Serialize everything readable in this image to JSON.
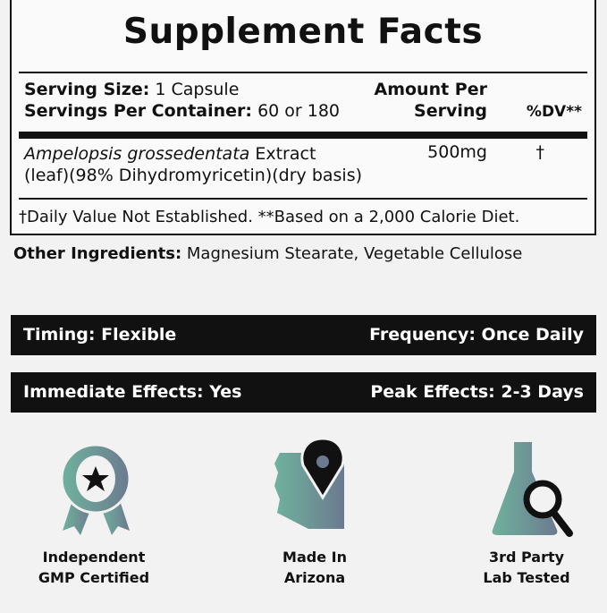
{
  "facts": {
    "title": "Supplement Facts",
    "serving_size_label": "Serving Size:",
    "serving_size_value": "1 Capsule",
    "servings_label": "Servings Per Container:",
    "servings_value": "60 or 180",
    "amount_header_1": "Amount Per",
    "amount_header_2": "Serving",
    "dv_header": "%DV**",
    "ingredient_italic": "Ampelopsis grossedentata",
    "ingredient_rest": "Extract",
    "ingredient_line2": "(leaf)(98% Dihydromyricetin)(dry basis)",
    "ingredient_amount": "500mg",
    "ingredient_dv": "†",
    "footnote": "†Daily Value Not Established. **Based on a 2,000 Calorie Diet."
  },
  "other": {
    "label": "Other Ingredients:",
    "value": "Magnesium Stearate, Vegetable Cellulose"
  },
  "bars": [
    {
      "left": "Timing: Flexible",
      "right": "Frequency: Once Daily"
    },
    {
      "left": "Immediate Effects: Yes",
      "right": "Peak Effects: 2-3 Days"
    }
  ],
  "badges": [
    {
      "icon": "award-ribbon-star-icon",
      "line1": "Independent",
      "line2": "GMP Certified"
    },
    {
      "icon": "arizona-map-pin-icon",
      "line1": "Made In",
      "line2": "Arizona"
    },
    {
      "icon": "flask-magnifier-icon",
      "line1": "3rd Party",
      "line2": "Lab Tested"
    }
  ],
  "colors": {
    "gradient_start": "#6fb29c",
    "gradient_end": "#6c7a90",
    "dark": "#111111"
  }
}
